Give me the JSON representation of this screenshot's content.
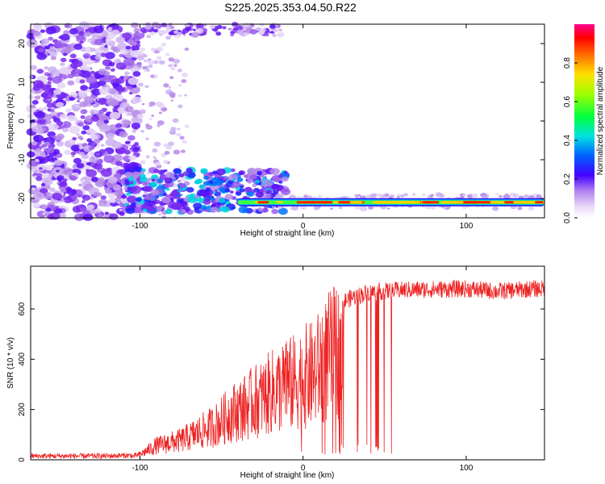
{
  "title": "S225.2025.353.04.50.R22",
  "chart_data": [
    {
      "type": "heatmap",
      "xlabel": "Height of straight line (km)",
      "ylabel": "Frequency (Hz)",
      "xlim": [
        -167,
        148
      ],
      "ylim": [
        -25,
        25
      ],
      "x_ticks": [
        -100,
        0,
        100
      ],
      "y_ticks": [
        -20,
        -10,
        0,
        10,
        20
      ],
      "colorbar": {
        "label": "Normalized spectral amplitude",
        "range": [
          0,
          1
        ],
        "ticks": [
          0.0,
          0.2,
          0.4,
          0.6,
          0.8
        ],
        "tick_labels": [
          "0.0",
          "0.2",
          "0.4",
          "0.6",
          "0.8"
        ]
      },
      "tone_line": {
        "frequency_hz": -21,
        "x_start": -40,
        "x_end": 148
      }
    },
    {
      "type": "line",
      "xlabel": "Height of straight line (km)",
      "ylabel": "SNR (10 * v/v)",
      "xlim": [
        -167,
        148
      ],
      "ylim": [
        0,
        770
      ],
      "x_ticks": [
        -100,
        0,
        100
      ],
      "y_ticks": [
        0,
        200,
        400,
        600
      ],
      "series": [
        {
          "color": "#ee2222",
          "x": [
            -167,
            -140,
            -120,
            -105,
            -100,
            -95,
            -90,
            -85,
            -80,
            -75,
            -70,
            -65,
            -60,
            -55,
            -50,
            -45,
            -40,
            -35,
            -30,
            -25,
            -20,
            -15,
            -10,
            -5,
            0,
            5,
            10,
            15,
            20,
            25,
            30,
            35,
            40,
            50,
            60,
            80,
            100,
            120,
            140,
            148
          ],
          "y": [
            15,
            15,
            15,
            18,
            30,
            55,
            80,
            90,
            100,
            110,
            130,
            150,
            170,
            190,
            220,
            260,
            280,
            300,
            330,
            350,
            380,
            400,
            420,
            440,
            470,
            480,
            520,
            580,
            610,
            630,
            645,
            655,
            665,
            670,
            675,
            678,
            680,
            670,
            680,
            680
          ]
        }
      ]
    }
  ]
}
